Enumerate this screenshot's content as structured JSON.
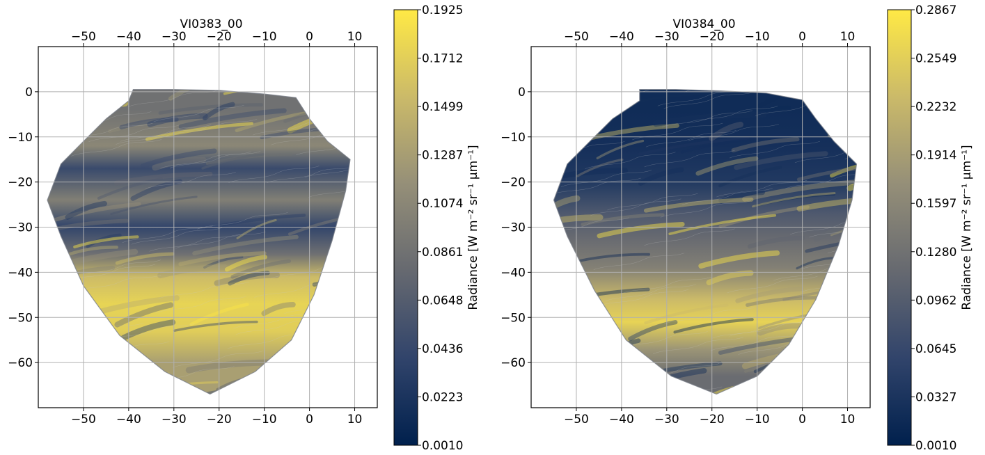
{
  "chart_data": [
    {
      "type": "heatmap",
      "title": "VI0383_00",
      "x_ticks": [
        -50,
        -40,
        -30,
        -20,
        -10,
        0,
        10
      ],
      "y_ticks": [
        0,
        -10,
        -20,
        -30,
        -40,
        -50,
        -60
      ],
      "xlim": [
        -60,
        15
      ],
      "ylim": [
        -70,
        10
      ],
      "grid": true,
      "colorbar": {
        "label": "Radiance [W m⁻² sr⁻¹ μm⁻¹]",
        "ticks": [
          "0.0010",
          "0.0223",
          "0.0436",
          "0.0648",
          "0.0861",
          "0.1074",
          "0.1287",
          "0.1499",
          "0.1712",
          "0.1925"
        ],
        "min": 0.001,
        "max": 0.1925
      },
      "colormap": [
        "#00204d",
        "#31446b",
        "#666970",
        "#958f78",
        "#cbba69",
        "#ffe945"
      ],
      "region_outline": [
        [
          -58,
          -24
        ],
        [
          -55,
          -16
        ],
        [
          -50,
          -11
        ],
        [
          -45,
          -6
        ],
        [
          -40,
          -2
        ],
        [
          -39,
          0.5
        ],
        [
          -30,
          0.5
        ],
        [
          -20,
          0.3
        ],
        [
          -10,
          -0.5
        ],
        [
          -3,
          -1.3
        ],
        [
          0,
          -6
        ],
        [
          4,
          -11
        ],
        [
          9,
          -15
        ],
        [
          8,
          -22
        ],
        [
          5,
          -33
        ],
        [
          1,
          -45
        ],
        [
          -4,
          -55
        ],
        [
          -12,
          -62
        ],
        [
          -22,
          -67
        ],
        [
          -32,
          -62
        ],
        [
          -42,
          -54
        ],
        [
          -50,
          -43
        ],
        [
          -55,
          -32
        ],
        [
          -58,
          -24
        ]
      ],
      "bands": [
        {
          "y": -4,
          "level": 0.086
        },
        {
          "y": -12,
          "level": 0.108
        },
        {
          "y": -17,
          "level": 0.045
        },
        {
          "y": -24,
          "level": 0.1
        },
        {
          "y": -30,
          "level": 0.04
        },
        {
          "y": -36,
          "level": 0.085
        },
        {
          "y": -41,
          "level": 0.155
        },
        {
          "y": -47,
          "level": 0.175
        },
        {
          "y": -53,
          "level": 0.17
        },
        {
          "y": -60,
          "level": 0.13
        }
      ]
    },
    {
      "type": "heatmap",
      "title": "VI0384_00",
      "x_ticks": [
        -50,
        -40,
        -30,
        -20,
        -10,
        0,
        10
      ],
      "y_ticks": [
        0,
        -10,
        -20,
        -30,
        -40,
        -50,
        -60
      ],
      "xlim": [
        -60,
        15
      ],
      "ylim": [
        -70,
        10
      ],
      "grid": true,
      "colorbar": {
        "label": "Radiance [W m⁻² sr⁻¹ μm⁻¹]",
        "ticks": [
          "0.0010",
          "0.0327",
          "0.0645",
          "0.0962",
          "0.1280",
          "0.1597",
          "0.1914",
          "0.2232",
          "0.2549",
          "0.2867"
        ],
        "min": 0.001,
        "max": 0.2867
      },
      "colormap": [
        "#00204d",
        "#31446b",
        "#666970",
        "#958f78",
        "#cbba69",
        "#ffe945"
      ],
      "region_outline": [
        [
          -55,
          -24
        ],
        [
          -52,
          -16
        ],
        [
          -47,
          -11
        ],
        [
          -42,
          -6
        ],
        [
          -36,
          -2
        ],
        [
          -36,
          0.5
        ],
        [
          -28,
          0.5
        ],
        [
          -18,
          0.2
        ],
        [
          -8,
          -0.3
        ],
        [
          0,
          -1.8
        ],
        [
          3,
          -6
        ],
        [
          7,
          -11
        ],
        [
          12,
          -16
        ],
        [
          11,
          -24
        ],
        [
          8,
          -34
        ],
        [
          3,
          -46
        ],
        [
          -3,
          -56
        ],
        [
          -10,
          -63
        ],
        [
          -19,
          -67
        ],
        [
          -29,
          -63
        ],
        [
          -39,
          -55
        ],
        [
          -46,
          -44
        ],
        [
          -52,
          -32
        ],
        [
          -55,
          -24
        ]
      ],
      "bands": [
        {
          "y": -4,
          "level": 0.02
        },
        {
          "y": -12,
          "level": 0.025
        },
        {
          "y": -20,
          "level": 0.04
        },
        {
          "y": -27,
          "level": 0.09
        },
        {
          "y": -33,
          "level": 0.12
        },
        {
          "y": -39,
          "level": 0.15
        },
        {
          "y": -46,
          "level": 0.23
        },
        {
          "y": -51,
          "level": 0.26
        },
        {
          "y": -57,
          "level": 0.18
        },
        {
          "y": -63,
          "level": 0.12
        }
      ]
    }
  ]
}
